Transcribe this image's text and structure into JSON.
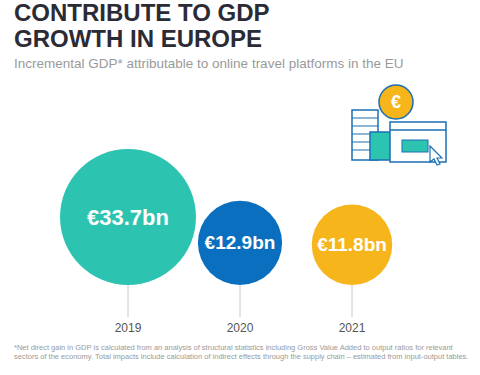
{
  "chart_data": {
    "type": "bubble",
    "title": "CONTRIBUTE TO GDP GROWTH IN EUROPE",
    "subtitle": "Incremental GDP* attributable to online travel platforms in the EU",
    "categories": [
      "2019",
      "2020",
      "2021"
    ],
    "values": [
      33.7,
      12.9,
      11.8
    ],
    "value_labels": [
      "€33.7bn",
      "€12.9bn",
      "€11.8bn"
    ],
    "colors": [
      "#2cc4b0",
      "#0a6fbf",
      "#f7b51c"
    ],
    "data_labels": true,
    "footnote": "*Net direct gain in GDP is calculated from an analysis of structural statistics including Gross Value Added to output ratios for relevant sectors of the economy. Total impacts include calculation of indirect effects through the supply chain – estimated from input-output tables."
  }
}
